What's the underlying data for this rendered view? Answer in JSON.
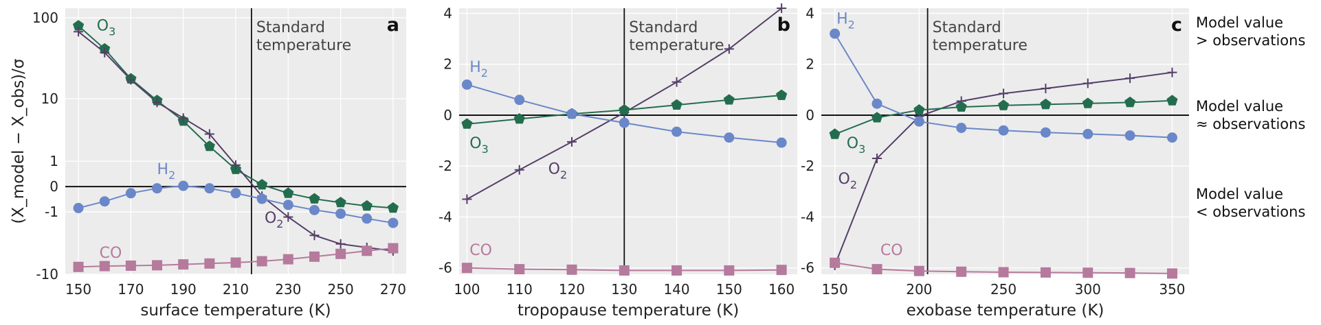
{
  "colors": {
    "H2": "#6a87c9",
    "O3": "#236d4e",
    "O2": "#553e68",
    "CO": "#b57a9c",
    "background": "#ececec",
    "grid": "#ffffff",
    "reference": "#111111"
  },
  "side_labels": [
    {
      "line1": "Model value",
      "line2": ">  observations"
    },
    {
      "line1": "Model value",
      "line2": "≈ observations"
    },
    {
      "line1": "Model value",
      "line2": "< observations"
    }
  ],
  "chart_data": [
    {
      "type": "line",
      "panel": "a",
      "xlabel": "surface temperature (K)",
      "ylabel": "(X_model − X_obs)/σ",
      "yscale": "symlog",
      "xlim": [
        145,
        275
      ],
      "xticks": [
        150,
        170,
        190,
        210,
        230,
        250,
        270
      ],
      "yticks": [
        {
          "v": 100,
          "label": "100"
        },
        {
          "v": 10,
          "label": "10"
        },
        {
          "v": 1,
          "label": "1"
        },
        {
          "v": 0,
          "label": "0"
        },
        {
          "v": -1,
          "label": "-1"
        },
        {
          "v": -10,
          "label": "-10"
        }
      ],
      "reference_line": {
        "x": 216,
        "label_line1": "Standard",
        "label_line2": "temperature"
      },
      "series": [
        {
          "name": "O3",
          "marker": "pentagon",
          "x": [
            150,
            160,
            170,
            180,
            190,
            200,
            210,
            220,
            230,
            240,
            250,
            260,
            270
          ],
          "y": [
            80,
            42,
            18,
            9.5,
            5,
            2,
            0.6,
            0.05,
            -0.2,
            -0.4,
            -0.55,
            -0.7,
            -0.8
          ]
        },
        {
          "name": "O2",
          "marker": "plus",
          "x": [
            150,
            160,
            170,
            180,
            190,
            200,
            210,
            220,
            230,
            240,
            250,
            260,
            270
          ],
          "y": [
            68,
            38,
            17.5,
            9,
            5.5,
            3.2,
            0.8,
            -0.3,
            -1.3,
            -2.8,
            -3.8,
            -4.3,
            -4.8
          ]
        },
        {
          "name": "H2",
          "marker": "circle",
          "x": [
            150,
            160,
            170,
            180,
            190,
            200,
            210,
            220,
            230,
            240,
            250,
            260,
            270
          ],
          "y": [
            -0.8,
            -0.5,
            -0.2,
            -0.05,
            0.02,
            -0.05,
            -0.2,
            -0.4,
            -0.65,
            -0.9,
            -1.1,
            -1.4,
            -1.7
          ]
        },
        {
          "name": "CO",
          "marker": "square",
          "x": [
            150,
            160,
            170,
            180,
            190,
            200,
            210,
            220,
            230,
            240,
            250,
            260,
            270
          ],
          "y": [
            -8.0,
            -7.8,
            -7.7,
            -7.6,
            -7.4,
            -7.2,
            -7.0,
            -6.7,
            -6.3,
            -5.8,
            -5.3,
            -4.8,
            -4.4
          ]
        }
      ],
      "labels": [
        {
          "text": "O",
          "sub": "3",
          "series": "O3",
          "x": 157,
          "y": 70
        },
        {
          "text": "O",
          "sub": "2",
          "series": "O2",
          "x": 221,
          "y": -1.7
        },
        {
          "text": "H",
          "sub": "2",
          "series": "H2",
          "x": 180,
          "y": 0.4
        },
        {
          "text": "CO",
          "sub": "",
          "series": "CO",
          "x": 158,
          "y": -6.0
        }
      ]
    },
    {
      "type": "line",
      "panel": "b",
      "xlabel": "tropopause temperature (K)",
      "xlim": [
        98.5,
        163
      ],
      "ylim": [
        -6.25,
        4.2
      ],
      "xticks": [
        100,
        110,
        120,
        130,
        140,
        150,
        160
      ],
      "yticks": [
        4,
        2,
        0,
        -2,
        -4,
        -6
      ],
      "reference_line": {
        "x": 130,
        "label_line1": "Standard",
        "label_line2": "temperature"
      },
      "series": [
        {
          "name": "O2",
          "marker": "plus",
          "x": [
            100,
            110,
            120,
            130,
            140,
            150,
            160
          ],
          "y": [
            -3.3,
            -2.15,
            -1.05,
            0.1,
            1.3,
            2.6,
            4.2
          ]
        },
        {
          "name": "O3",
          "marker": "pentagon",
          "x": [
            100,
            110,
            120,
            130,
            140,
            150,
            160
          ],
          "y": [
            -0.35,
            -0.15,
            0.05,
            0.2,
            0.4,
            0.6,
            0.78
          ]
        },
        {
          "name": "H2",
          "marker": "circle",
          "x": [
            100,
            110,
            120,
            130,
            140,
            150,
            160
          ],
          "y": [
            1.2,
            0.6,
            0.05,
            -0.3,
            -0.65,
            -0.88,
            -1.08
          ]
        },
        {
          "name": "CO",
          "marker": "square",
          "x": [
            100,
            110,
            120,
            130,
            140,
            150,
            160
          ],
          "y": [
            -6.0,
            -6.05,
            -6.07,
            -6.1,
            -6.1,
            -6.1,
            -6.08
          ]
        }
      ],
      "labels": [
        {
          "text": "H",
          "sub": "2",
          "series": "H2",
          "x": 100.5,
          "y": 1.7
        },
        {
          "text": "O",
          "sub": "3",
          "series": "O3",
          "x": 100.5,
          "y": -1.3
        },
        {
          "text": "O",
          "sub": "2",
          "series": "O2",
          "x": 115.5,
          "y": -2.3
        },
        {
          "text": "CO",
          "sub": "",
          "series": "CO",
          "x": 100.5,
          "y": -5.5
        }
      ]
    },
    {
      "type": "line",
      "panel": "c",
      "xlabel": "exobase temperature (K)",
      "xlim": [
        142,
        360
      ],
      "ylim": [
        -6.25,
        4.2
      ],
      "xticks": [
        150,
        200,
        250,
        300,
        350
      ],
      "yticks": [
        4,
        2,
        0,
        -2,
        -4,
        -6
      ],
      "reference_line": {
        "x": 205,
        "label_line1": "Standard",
        "label_line2": "temperature"
      },
      "series": [
        {
          "name": "O2",
          "marker": "plus",
          "x": [
            150,
            175,
            200,
            225,
            250,
            275,
            300,
            325,
            350
          ],
          "y": [
            -5.9,
            -1.7,
            -0.05,
            0.55,
            0.85,
            1.05,
            1.25,
            1.45,
            1.68
          ]
        },
        {
          "name": "O3",
          "marker": "pentagon",
          "x": [
            150,
            175,
            200,
            225,
            250,
            275,
            300,
            325,
            350
          ],
          "y": [
            -0.75,
            -0.1,
            0.2,
            0.32,
            0.38,
            0.42,
            0.46,
            0.5,
            0.57
          ]
        },
        {
          "name": "H2",
          "marker": "circle",
          "x": [
            150,
            175,
            200,
            225,
            250,
            275,
            300,
            325,
            350
          ],
          "y": [
            3.2,
            0.45,
            -0.25,
            -0.5,
            -0.6,
            -0.68,
            -0.74,
            -0.8,
            -0.88
          ]
        },
        {
          "name": "CO",
          "marker": "square",
          "x": [
            150,
            175,
            200,
            225,
            250,
            275,
            300,
            325,
            350
          ],
          "y": [
            -5.8,
            -6.05,
            -6.12,
            -6.15,
            -6.17,
            -6.18,
            -6.19,
            -6.2,
            -6.22
          ]
        }
      ],
      "labels": [
        {
          "text": "H",
          "sub": "2",
          "series": "H2",
          "x": 151,
          "y": 3.6
        },
        {
          "text": "O",
          "sub": "3",
          "series": "O3",
          "x": 157,
          "y": -1.3
        },
        {
          "text": "O",
          "sub": "2",
          "series": "O2",
          "x": 152,
          "y": -2.7
        },
        {
          "text": "CO",
          "sub": "",
          "series": "CO",
          "x": 177,
          "y": -5.5
        }
      ]
    }
  ]
}
